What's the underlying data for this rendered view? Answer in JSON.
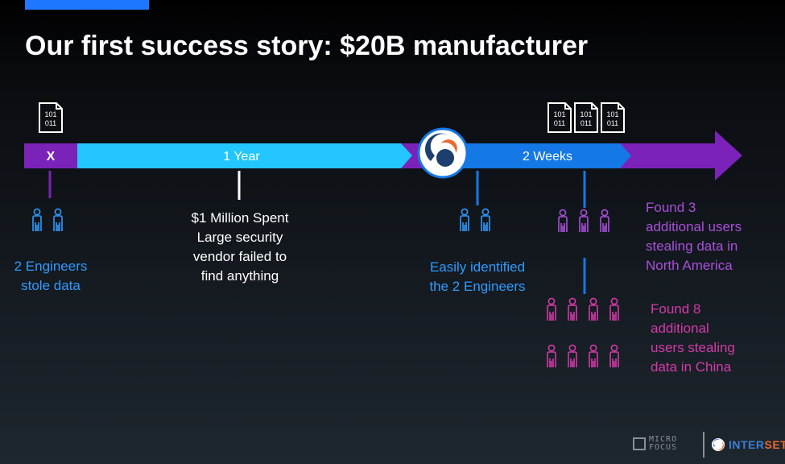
{
  "slide": {
    "title": "Our first success story: $20B manufacturer"
  },
  "timeline": {
    "segment_x": "X",
    "segment_year": "1 Year",
    "segment_weeks": "2 Weeks"
  },
  "files": {
    "line1": "101",
    "line2": "011"
  },
  "notes": {
    "engineers_line1": "2 Engineers",
    "engineers_line2": "stole data",
    "million_line1": "$1 Million Spent",
    "million_line2": "Large security",
    "million_line3": "vendor failed to",
    "million_line4": "find anything",
    "identified_line1": "Easily identified",
    "identified_line2": "the 2 Engineers",
    "na_line1": "Found 3",
    "na_line2": "additional users",
    "na_line3": "stealing data in",
    "na_line4": "North America",
    "china_line1": "Found 8",
    "china_line2": "additional",
    "china_line3": "users stealing",
    "china_line4": "data in China"
  },
  "logos": {
    "microfocus_line1": "MICRO",
    "microfocus_line2": "FOCUS",
    "interset_a": "INTER",
    "interset_b": "SET"
  },
  "colors": {
    "accent": "#1e78ff",
    "purple": "#7b22b8",
    "cyan": "#23c6ff",
    "blue": "#1478e6",
    "text_blue": "#2f9bff",
    "text_purple": "#a94fd9",
    "text_magenta": "#d23aa8"
  }
}
